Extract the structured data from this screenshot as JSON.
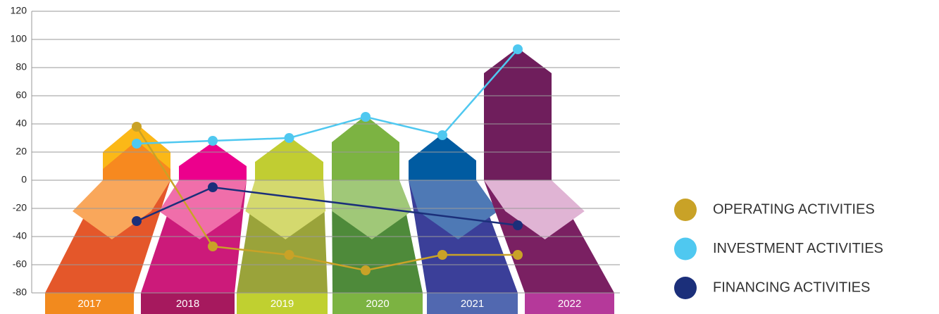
{
  "chart_data": {
    "type": "line",
    "categories": [
      "2017",
      "2018",
      "2019",
      "2020",
      "2021",
      "2022"
    ],
    "series": [
      {
        "name": "OPERATING ACTIVITIES",
        "color": "#c9a227",
        "values": [
          38,
          -47,
          -53,
          -64,
          -53,
          -53
        ]
      },
      {
        "name": "INVESTMENT ACTIVITIES",
        "color": "#4fc8f0",
        "values": [
          26,
          28,
          30,
          45,
          32,
          93
        ]
      },
      {
        "name": "FINANCING ACTIVITIES",
        "color": "#1b2f7a",
        "x": [
          "2017",
          "2018",
          "2022"
        ],
        "values": [
          -29,
          -5,
          -32
        ]
      }
    ],
    "ylim": [
      -80,
      120
    ],
    "yticks": [
      -80,
      -60,
      -40,
      -20,
      0,
      20,
      40,
      60,
      80,
      100,
      120
    ],
    "grid": true
  }
}
